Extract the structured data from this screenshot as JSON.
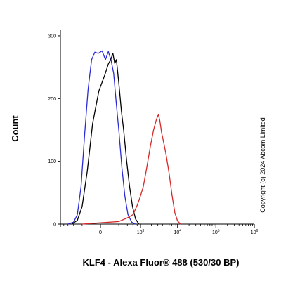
{
  "chart_data": {
    "type": "line",
    "title": "",
    "xlabel": "KLF4 - Alexa Fluor® 488 (530/30 BP)",
    "ylabel": "Count",
    "x_scale": "biexponential",
    "xlim": [
      -1000,
      1000000
    ],
    "ylim": [
      0,
      310
    ],
    "y_ticks": [
      0,
      100,
      200,
      300
    ],
    "x_ticks": [
      {
        "value": 0,
        "base": "0",
        "exp": ""
      },
      {
        "value": 1000,
        "base": "10",
        "exp": "3"
      },
      {
        "value": 10000,
        "base": "10",
        "exp": "4"
      },
      {
        "value": 100000,
        "base": "10",
        "exp": "5"
      },
      {
        "value": 1000000,
        "base": "10",
        "exp": "6"
      }
    ],
    "grid": false,
    "legend": "none",
    "series": [
      {
        "color": "#2b2bd6",
        "points": [
          [
            -600,
            0
          ],
          [
            -400,
            3
          ],
          [
            -300,
            15
          ],
          [
            -220,
            60
          ],
          [
            -160,
            140
          ],
          [
            -110,
            215
          ],
          [
            -70,
            262
          ],
          [
            -40,
            274
          ],
          [
            -15,
            272
          ],
          [
            10,
            276
          ],
          [
            35,
            262
          ],
          [
            60,
            275
          ],
          [
            90,
            260
          ],
          [
            120,
            240
          ],
          [
            160,
            190
          ],
          [
            200,
            150
          ],
          [
            260,
            90
          ],
          [
            330,
            45
          ],
          [
            420,
            15
          ],
          [
            550,
            3
          ],
          [
            700,
            0
          ]
        ]
      },
      {
        "color": "#000000",
        "points": [
          [
            -450,
            0
          ],
          [
            -300,
            6
          ],
          [
            -200,
            28
          ],
          [
            -120,
            85
          ],
          [
            -60,
            160
          ],
          [
            -10,
            212
          ],
          [
            30,
            238
          ],
          [
            60,
            255
          ],
          [
            85,
            262
          ],
          [
            110,
            272
          ],
          [
            135,
            256
          ],
          [
            160,
            262
          ],
          [
            200,
            225
          ],
          [
            250,
            180
          ],
          [
            300,
            150
          ],
          [
            380,
            100
          ],
          [
            470,
            60
          ],
          [
            580,
            28
          ],
          [
            720,
            8
          ],
          [
            900,
            0
          ]
        ]
      },
      {
        "color": "#d62828",
        "points": [
          [
            -200,
            0
          ],
          [
            0,
            2
          ],
          [
            200,
            4
          ],
          [
            400,
            10
          ],
          [
            600,
            15
          ],
          [
            800,
            30
          ],
          [
            1000,
            45
          ],
          [
            1200,
            60
          ],
          [
            1500,
            90
          ],
          [
            1900,
            125
          ],
          [
            2300,
            150
          ],
          [
            2700,
            165
          ],
          [
            3100,
            175
          ],
          [
            3400,
            165
          ],
          [
            3800,
            145
          ],
          [
            4300,
            130
          ],
          [
            5000,
            110
          ],
          [
            6000,
            80
          ],
          [
            7200,
            45
          ],
          [
            8500,
            18
          ],
          [
            10000,
            5
          ],
          [
            12000,
            0
          ]
        ]
      }
    ],
    "annotations": [
      "Copyright (c) 2024  Abcam Limited"
    ]
  }
}
